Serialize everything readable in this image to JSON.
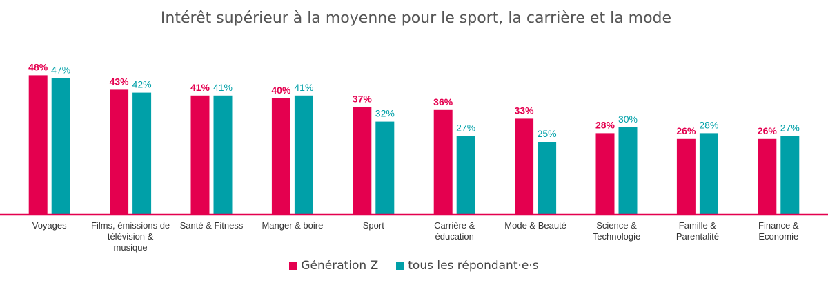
{
  "chart_data": {
    "type": "bar",
    "title": "Intérêt supérieur à la moyenne pour le sport, la carrière et la mode",
    "xlabel": "",
    "ylabel": "",
    "ylim": [
      0,
      50
    ],
    "grid": false,
    "legend_position": "bottom",
    "categories": [
      [
        "Voyages"
      ],
      [
        "Films, émissions de",
        "télévision &",
        "musique"
      ],
      [
        "Santé & Fitness"
      ],
      [
        "Manger & boire"
      ],
      [
        "Sport"
      ],
      [
        "Carrière &",
        "éducation"
      ],
      [
        "Mode & Beauté"
      ],
      [
        "Science &",
        "Technologie"
      ],
      [
        "Famille &",
        "Parentalité"
      ],
      [
        "Finance &",
        "Economie"
      ]
    ],
    "series": [
      {
        "name": "Génération Z",
        "color": "#E4004F",
        "values": [
          48,
          43,
          41,
          40,
          37,
          36,
          33,
          28,
          26,
          26
        ]
      },
      {
        "name": "tous les répondant·e·s",
        "color": "#00A0A8",
        "values": [
          47,
          42,
          41,
          41,
          32,
          27,
          25,
          30,
          28,
          27
        ]
      }
    ],
    "value_suffix": "%",
    "baseline_color": "#E4004F"
  }
}
